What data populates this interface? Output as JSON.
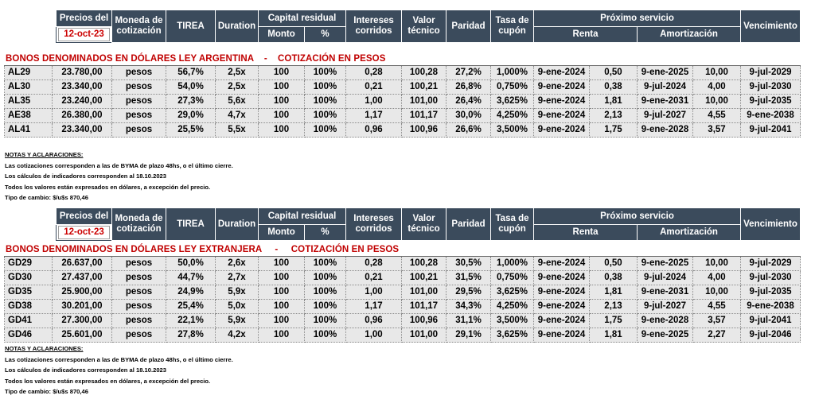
{
  "header": {
    "precios_del": "Precios del",
    "date": "12-oct-23",
    "moneda": "Moneda de cotización",
    "tirea": "TIREA",
    "duration": "Duration",
    "capital_residual": "Capital residual",
    "monto": "Monto",
    "pct": "%",
    "intereses": "Intereses corridos",
    "valor_tecnico": "Valor técnico",
    "paridad": "Paridad",
    "tasa_cupon": "Tasa de cupón",
    "proximo_servicio": "Próximo servicio",
    "renta": "Renta",
    "amortizacion": "Amortización",
    "vencimiento": "Vencimiento"
  },
  "section1": {
    "title": "BONOS DENOMINADOS EN DÓLARES LEY ARGENTINA    -    COTIZACIÓN EN PESOS",
    "rows": [
      [
        "AL29",
        "23.780,00",
        "pesos",
        "56,7%",
        "2,5x",
        "100",
        "100%",
        "0,28",
        "100,28",
        "27,2%",
        "1,000%",
        "9-ene-2024",
        "0,50",
        "9-ene-2025",
        "10,00",
        "9-jul-2029"
      ],
      [
        "AL30",
        "23.340,00",
        "pesos",
        "54,0%",
        "2,5x",
        "100",
        "100%",
        "0,21",
        "100,21",
        "26,8%",
        "0,750%",
        "9-ene-2024",
        "0,38",
        "9-jul-2024",
        "4,00",
        "9-jul-2030"
      ],
      [
        "AL35",
        "23.240,00",
        "pesos",
        "27,3%",
        "5,6x",
        "100",
        "100%",
        "1,00",
        "101,00",
        "26,4%",
        "3,625%",
        "9-ene-2024",
        "1,81",
        "9-ene-2031",
        "10,00",
        "9-jul-2035"
      ],
      [
        "AE38",
        "26.380,00",
        "pesos",
        "29,0%",
        "4,7x",
        "100",
        "100%",
        "1,17",
        "101,17",
        "30,0%",
        "4,250%",
        "9-ene-2024",
        "2,13",
        "9-jul-2027",
        "4,55",
        "9-ene-2038"
      ],
      [
        "AL41",
        "23.340,00",
        "pesos",
        "25,5%",
        "5,5x",
        "100",
        "100%",
        "0,96",
        "100,96",
        "26,6%",
        "3,500%",
        "9-ene-2024",
        "1,75",
        "9-ene-2028",
        "3,57",
        "9-jul-2041"
      ]
    ]
  },
  "section2": {
    "title": "BONOS DENOMINADOS EN DÓLARES LEY EXTRANJERA     -     COTIZACIÓN EN PESOS",
    "rows": [
      [
        "GD29",
        "26.637,00",
        "pesos",
        "50,0%",
        "2,6x",
        "100",
        "100%",
        "0,28",
        "100,28",
        "30,5%",
        "1,000%",
        "9-ene-2024",
        "0,50",
        "9-ene-2025",
        "10,00",
        "9-jul-2029"
      ],
      [
        "GD30",
        "27.437,00",
        "pesos",
        "44,7%",
        "2,7x",
        "100",
        "100%",
        "0,21",
        "100,21",
        "31,5%",
        "0,750%",
        "9-ene-2024",
        "0,38",
        "9-jul-2024",
        "4,00",
        "9-jul-2030"
      ],
      [
        "GD35",
        "25.900,00",
        "pesos",
        "24,9%",
        "5,9x",
        "100",
        "100%",
        "1,00",
        "101,00",
        "29,5%",
        "3,625%",
        "9-ene-2024",
        "1,81",
        "9-ene-2031",
        "10,00",
        "9-jul-2035"
      ],
      [
        "GD38",
        "30.201,00",
        "pesos",
        "25,4%",
        "5,0x",
        "100",
        "100%",
        "1,17",
        "101,17",
        "34,3%",
        "4,250%",
        "9-ene-2024",
        "2,13",
        "9-jul-2027",
        "4,55",
        "9-ene-2038"
      ],
      [
        "GD41",
        "27.300,00",
        "pesos",
        "22,1%",
        "5,9x",
        "100",
        "100%",
        "0,96",
        "100,96",
        "31,1%",
        "3,500%",
        "9-ene-2024",
        "1,75",
        "9-ene-2028",
        "3,57",
        "9-jul-2041"
      ],
      [
        "GD46",
        "25.601,00",
        "pesos",
        "27,8%",
        "4,2x",
        "100",
        "100%",
        "1,00",
        "101,00",
        "29,1%",
        "3,625%",
        "9-ene-2024",
        "1,81",
        "9-ene-2025",
        "2,27",
        "9-jul-2046"
      ]
    ]
  },
  "notes": {
    "heading": "NOTAS Y ACLARACIONES:",
    "lines": [
      "Las cotizaciones corresponden a las de BYMA de plazo 48hs, o el último cierre.",
      "Los cálculos de indicadores corresponden al 18.10.2023",
      "Todos los valores están expresados en dólares, a excepción del precio.",
      "Tipo de cambio:  $/u$s 870,46"
    ]
  }
}
